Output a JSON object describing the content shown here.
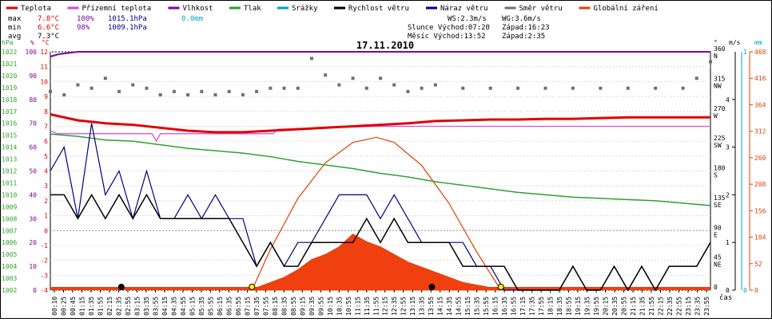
{
  "legend": [
    {
      "label": "Teplota",
      "color": "#e00000"
    },
    {
      "label": "Přízemní teplota",
      "color": "#e040e0"
    },
    {
      "label": "Vlhkost",
      "color": "#8000a0"
    },
    {
      "label": "Tlak",
      "color": "#30a030"
    },
    {
      "label": "Srážky",
      "color": "#00a0d0"
    },
    {
      "label": "Rychlost větru",
      "color": "#000000"
    },
    {
      "label": "Náraz větru",
      "color": "#000080"
    },
    {
      "label": "Směr větru",
      "color": "#707070"
    },
    {
      "label": "Globální záření",
      "color": "#e04000"
    }
  ],
  "stats": {
    "max_label": "max",
    "max_temp": "7.8°C",
    "max_hum": "100%",
    "max_press": "1015.1hPa",
    "max_rain": "0.0mm",
    "min_label": "min",
    "min_temp": "6.6°C",
    "min_hum": "98%",
    "min_press": "1009.1hPa",
    "avg_label": "avg",
    "avg_temp": "7.3°C"
  },
  "info": {
    "wind": "WS:2.3m/s",
    "gust": "WG:3.6m/s",
    "sun_rise": "Slunce Východ:07:20",
    "sun_set": "Západ:16:23",
    "moon_rise": "Měsíc  Východ:13:52",
    "moon_set": "Západ:2:35"
  },
  "chart_data": {
    "type": "line",
    "title": "17.11.2010",
    "xlabel": "čas",
    "x_ticks": [
      "00:10",
      "00:25",
      "00:45",
      "01:15",
      "01:35",
      "01:55",
      "02:15",
      "02:35",
      "02:55",
      "03:15",
      "03:35",
      "03:55",
      "04:15",
      "04:35",
      "04:55",
      "05:15",
      "05:35",
      "05:55",
      "06:15",
      "06:35",
      "06:55",
      "07:15",
      "07:35",
      "07:55",
      "08:15",
      "08:35",
      "08:55",
      "09:15",
      "09:35",
      "09:55",
      "10:15",
      "10:35",
      "10:55",
      "11:15",
      "11:35",
      "11:55",
      "12:15",
      "12:35",
      "12:55",
      "13:15",
      "13:35",
      "13:55",
      "14:15",
      "14:35",
      "14:55",
      "15:15",
      "15:35",
      "15:55",
      "16:15",
      "16:35",
      "16:55",
      "17:15",
      "17:35",
      "17:55",
      "18:15",
      "18:35",
      "18:55",
      "19:15",
      "19:35",
      "19:55",
      "20:15",
      "20:35",
      "20:55",
      "21:15",
      "21:35",
      "21:55",
      "22:15",
      "22:35",
      "22:55",
      "23:15",
      "23:35",
      "23:55"
    ],
    "axes": {
      "pressure": {
        "unit": "hPa",
        "range": [
          1002,
          1022
        ],
        "ticks": [
          "1002",
          "1003",
          "1004",
          "1005",
          "1006",
          "1007",
          "1008",
          "1009",
          "1010",
          "1011",
          "1012",
          "1013",
          "1014",
          "1015",
          "1016",
          "1017",
          "1018",
          "1019",
          "1020",
          "1021",
          "1022"
        ]
      },
      "humidity": {
        "unit": "%",
        "range": [
          0,
          100
        ],
        "ticks": [
          "0",
          "10",
          "20",
          "30",
          "40",
          "50",
          "60",
          "70",
          "80",
          "90",
          "100"
        ]
      },
      "temperature": {
        "unit": "°C",
        "range": [
          -4,
          12
        ],
        "ticks": [
          "-4",
          "-3",
          "-2",
          "-1",
          "0",
          "1",
          "2",
          "3",
          "4",
          "5",
          "6",
          "7",
          "8",
          "9",
          "10",
          "11",
          "12"
        ]
      },
      "wind_dir": {
        "unit": "°",
        "range": [
          0,
          360
        ],
        "ticks": [
          {
            "v": "0",
            "d": ""
          },
          {
            "v": "45",
            "d": "NE"
          },
          {
            "v": "90",
            "d": "E"
          },
          {
            "v": "135",
            "d": "SE"
          },
          {
            "v": "180",
            "d": "S"
          },
          {
            "v": "225",
            "d": "SW"
          },
          {
            "v": "270",
            "d": "W"
          },
          {
            "v": "315",
            "d": "NW"
          },
          {
            "v": "360",
            "d": "N"
          }
        ]
      },
      "wind_speed": {
        "unit": "m/s",
        "range": [
          0,
          5
        ],
        "ticks": [
          "0",
          "1",
          "2",
          "3",
          "4"
        ]
      },
      "rain": {
        "unit": "mm",
        "range": [
          0,
          1
        ],
        "ticks": [
          "0",
          "1"
        ]
      },
      "radiation": {
        "unit": "W/m²",
        "range": [
          0,
          468
        ],
        "ticks": [
          "0",
          "52",
          "104",
          "156",
          "208",
          "260",
          "312",
          "364",
          "416",
          "468"
        ]
      }
    },
    "series": [
      {
        "name": "Vlhkost",
        "axis": "humidity",
        "x": [
          0,
          0.3,
          1,
          24
        ],
        "y": [
          98,
          99,
          100,
          100
        ]
      },
      {
        "name": "Teplota",
        "axis": "temperature",
        "x": [
          0,
          1,
          2,
          3,
          4,
          5,
          6,
          7,
          8,
          9,
          10,
          11,
          12,
          13,
          14,
          15,
          16,
          17,
          18,
          19,
          20,
          21,
          22,
          23,
          24
        ],
        "y": [
          7.8,
          7.4,
          7.2,
          7.1,
          6.9,
          6.7,
          6.6,
          6.6,
          6.7,
          6.8,
          6.9,
          7.0,
          7.1,
          7.2,
          7.35,
          7.4,
          7.45,
          7.45,
          7.5,
          7.5,
          7.55,
          7.6,
          7.6,
          7.6,
          7.6
        ]
      },
      {
        "name": "Přízemní teplota",
        "axis": "temperature",
        "x": [
          0,
          0.25,
          3.7,
          3.85,
          4.0,
          8.1,
          8.25,
          12,
          24
        ],
        "y": [
          6.7,
          6.5,
          6.5,
          6.0,
          6.5,
          6.5,
          6.8,
          7.0,
          7.0
        ]
      },
      {
        "name": "Tlak",
        "axis": "pressure",
        "x": [
          0,
          1,
          2,
          3,
          4,
          5,
          6,
          7,
          8,
          9,
          10,
          11,
          12,
          13,
          14,
          15,
          16,
          17,
          18,
          19,
          20,
          21,
          22,
          23,
          24
        ],
        "y": [
          1015.1,
          1014.9,
          1014.6,
          1014.5,
          1014.2,
          1013.9,
          1013.7,
          1013.5,
          1013.2,
          1012.8,
          1012.5,
          1012.2,
          1011.8,
          1011.5,
          1011.1,
          1010.8,
          1010.5,
          1010.2,
          1010.0,
          1009.8,
          1009.7,
          1009.6,
          1009.5,
          1009.3,
          1009.1
        ]
      },
      {
        "name": "Rychlost větru",
        "axis": "wind_speed",
        "x": [
          0,
          0.5,
          1,
          1.5,
          2,
          2.5,
          3,
          3.5,
          4,
          4.5,
          5,
          5.5,
          6,
          6.5,
          7,
          7.5,
          8,
          8.5,
          9,
          9.5,
          10,
          10.5,
          11,
          11.5,
          12,
          12.5,
          13,
          13.5,
          14,
          14.5,
          15,
          15.5,
          16,
          16.5,
          17,
          17.5,
          18,
          18.5,
          19,
          19.5,
          20,
          20.5,
          21,
          21.5,
          22,
          22.5,
          23,
          23.5,
          24
        ],
        "y": [
          2,
          2,
          1.5,
          2,
          1.5,
          2,
          1.5,
          2,
          1.5,
          1.5,
          1.5,
          1.5,
          1.5,
          1.5,
          1,
          0.5,
          1,
          0.5,
          0.5,
          1,
          1,
          1,
          1,
          1.5,
          1,
          1.5,
          1,
          1,
          1,
          1,
          0.5,
          0.5,
          0.5,
          0.5,
          0,
          0,
          0,
          0,
          0.5,
          0,
          0,
          0.5,
          0,
          0.5,
          0,
          0.5,
          0.5,
          0.5,
          1
        ]
      },
      {
        "name": "Náraz větru",
        "axis": "wind_speed",
        "x": [
          0,
          0.5,
          1,
          1.5,
          2,
          2.5,
          3,
          3.5,
          4,
          4.5,
          5,
          5.5,
          6,
          6.5,
          7,
          7.5,
          8,
          8.5,
          9,
          9.5,
          10,
          10.5,
          11,
          11.5,
          12,
          12.5,
          13,
          13.5,
          14,
          14.5,
          15,
          15.5,
          16,
          16.5,
          17,
          17.5,
          18,
          18.5,
          19,
          19.5,
          20,
          20.5,
          21,
          21.5,
          22,
          22.5,
          23,
          23.5,
          24
        ],
        "y": [
          2.5,
          3,
          1.5,
          3.5,
          2,
          2.5,
          1.5,
          2.5,
          1.5,
          1.5,
          2,
          1.5,
          2,
          1.5,
          1.5,
          0.5,
          1,
          0.5,
          1,
          1,
          1.5,
          2,
          2,
          2,
          1.5,
          2,
          1.5,
          1,
          1,
          1,
          1,
          0.5,
          0.5,
          0,
          0,
          0,
          0,
          0,
          0.5,
          0,
          0,
          0.5,
          0,
          0.5,
          0,
          0.5,
          0.5,
          0.5,
          1
        ]
      },
      {
        "name": "Směr větru",
        "axis": "wind_dir",
        "x": [
          0,
          0.5,
          1,
          1.5,
          2,
          2.5,
          3,
          3.5,
          4,
          4.5,
          5,
          5.5,
          6,
          6.5,
          7,
          7.5,
          8,
          8.5,
          9,
          9.5,
          10,
          10.5,
          11,
          11.5,
          12,
          12.5,
          13,
          13.5,
          14,
          15,
          16,
          17,
          18,
          19,
          20,
          21,
          22,
          23,
          23.5,
          24
        ],
        "y": [
          300,
          295,
          310,
          305,
          320,
          300,
          310,
          305,
          295,
          300,
          295,
          300,
          295,
          300,
          295,
          300,
          305,
          305,
          305,
          350,
          325,
          310,
          320,
          305,
          320,
          310,
          300,
          305,
          310,
          305,
          305,
          305,
          305,
          305,
          305,
          305,
          305,
          305,
          320,
          345
        ]
      },
      {
        "name": "Globální záření",
        "axis": "radiation",
        "x": [
          7.2,
          7.5,
          8,
          8.5,
          9,
          9.5,
          10,
          10.5,
          11,
          11.5,
          12,
          12.5,
          13,
          13.5,
          14,
          14.5,
          15,
          15.5,
          16,
          16.4
        ],
        "y": [
          0,
          5,
          15,
          25,
          40,
          60,
          70,
          85,
          110,
          95,
          85,
          70,
          55,
          45,
          35,
          25,
          15,
          10,
          5,
          0
        ]
      },
      {
        "name": "Sluneční dráha",
        "axis": "radiation",
        "x": [
          7.33,
          8,
          9,
          10,
          11,
          11.85,
          12.5,
          13.5,
          14.5,
          15.5,
          16.38
        ],
        "y": [
          0,
          80,
          180,
          250,
          290,
          300,
          290,
          245,
          170,
          75,
          0
        ]
      }
    ],
    "markers": [
      {
        "kind": "moon_set",
        "x": 2.58
      },
      {
        "kind": "sun_rise",
        "x": 7.33
      },
      {
        "kind": "moon_rise",
        "x": 13.87
      },
      {
        "kind": "sun_set",
        "x": 16.38
      }
    ]
  }
}
